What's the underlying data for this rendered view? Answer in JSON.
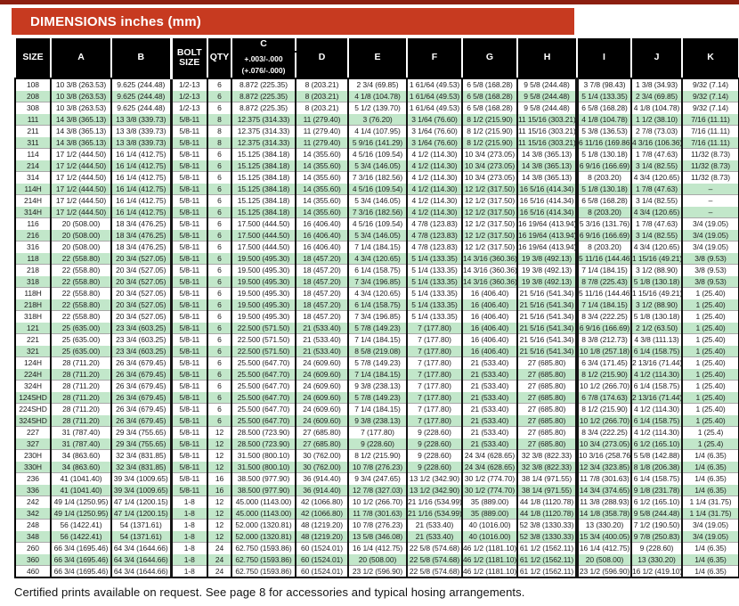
{
  "page": {
    "title": "DIMENSIONS inches (mm)",
    "footer_note": "Certified prints available on request. See page 8 for accessories and typical hosing arrangements."
  },
  "colors": {
    "title_red": "#c73a20",
    "top_strip": "#8c1f10",
    "header_bg": "#000000",
    "stripe_green": "#c2e7ca"
  },
  "table": {
    "headers": {
      "size": "SIZE",
      "a": "A",
      "b": "B",
      "bolt": "BOLT SIZE",
      "qty": "QTY",
      "c": "C",
      "c_tol_in": "+.003/-.000",
      "c_tol_mm": "(+.076/-.000)",
      "d": "D",
      "e": "E",
      "f": "F",
      "g": "G",
      "h": "H",
      "i": "I",
      "j": "J",
      "k": "K"
    },
    "rows": [
      [
        "108",
        "10 3/8 (263.53)",
        "9.625 (244.48)",
        "1/2-13",
        "6",
        "8.872 (225.35)",
        "8 (203.21)",
        "2 3/4 (69.85)",
        "1 61/64 (49.53)",
        "6 5/8 (168.28)",
        "9 5/8 (244.48)",
        "3 7/8 (98.43)",
        "1 3/8 (34.93)",
        "9/32 (7.14)"
      ],
      [
        "208",
        "10 3/8 (263.53)",
        "9.625 (244.48)",
        "1/2-13",
        "6",
        "8.872 (225.35)",
        "8 (203.21)",
        "4 1/8 (104.78)",
        "1 61/64 (49.53)",
        "6 5/8 (168.28)",
        "9 5/8 (244.48)",
        "5 1/4 (133.35)",
        "2 3/4 (69.85)",
        "9/32 (7.14)"
      ],
      [
        "308",
        "10 3/8 (263.53)",
        "9.625 (244.48)",
        "1/2-13",
        "6",
        "8.872 (225.35)",
        "8 (203.21)",
        "5 1/2 (139.70)",
        "1 61/64 (49.53)",
        "6 5/8 (168.28)",
        "9 5/8 (244.48)",
        "6 5/8 (168.28)",
        "4 1/8 (104.78)",
        "9/32 (7.14)"
      ],
      [
        "111",
        "14 3/8 (365.13)",
        "13 3/8 (339.73)",
        "5/8-11",
        "8",
        "12.375 (314.33)",
        "11 (279.40)",
        "3 (76.20)",
        "3 1/64 (76.60)",
        "8 1/2 (215.90)",
        "11 15/16 (303.21)",
        "4 1/8 (104.78)",
        "1 1/2 (38.10)",
        "7/16 (11.11)"
      ],
      [
        "211",
        "14 3/8 (365.13)",
        "13 3/8 (339.73)",
        "5/8-11",
        "8",
        "12.375 (314.33)",
        "11 (279.40)",
        "4 1/4 (107.95)",
        "3 1/64 (76.60)",
        "8 1/2 (215.90)",
        "11 15/16 (303.21)",
        "5 3/8 (136.53)",
        "2 7/8 (73.03)",
        "7/16 (11.11)"
      ],
      [
        "311",
        "14 3/8 (365.13)",
        "13 3/8 (339.73)",
        "5/8-11",
        "8",
        "12.375 (314.33)",
        "11 (279.40)",
        "5 9/16 (141.29)",
        "3 1/64 (76.60)",
        "8 1/2 (215.90)",
        "11 15/16 (303.21)",
        "6 11/16 (169.86)",
        "4 3/16 (106.36)",
        "7/16 (11.11)"
      ],
      [
        "114",
        "17 1/2 (444.50)",
        "16 1/4 (412.75)",
        "5/8-11",
        "6",
        "15.125 (384.18)",
        "14 (355.60)",
        "4 5/16 (109.54)",
        "4 1/2 (114.30)",
        "10 3/4 (273.05)",
        "14 3/8 (365.13)",
        "5 1/8 (130.18)",
        "1 7/8 (47.63)",
        "11/32 (8.73)"
      ],
      [
        "214",
        "17 1/2 (444.50)",
        "16 1/4 (412.75)",
        "5/8-11",
        "6",
        "15.125 (384.18)",
        "14 (355.60)",
        "5 3/4 (146.05)",
        "4 1/2 (114.30)",
        "10 3/4 (273.05)",
        "14 3/8 (365.13)",
        "6 9/16 (166.69)",
        "3 1/4 (82.55)",
        "11/32 (8.73)"
      ],
      [
        "314",
        "17 1/2 (444.50)",
        "16 1/4 (412.75)",
        "5/8-11",
        "6",
        "15.125 (384.18)",
        "14 (355.60)",
        "7 3/16 (182.56)",
        "4 1/2 (114.30)",
        "10 3/4 (273.05)",
        "14 3/8 (365.13)",
        "8 (203.20)",
        "4 3/4 (120.65)",
        "11/32 (8.73)"
      ],
      [
        "114H",
        "17 1/2 (444.50)",
        "16 1/4 (412.75)",
        "5/8-11",
        "6",
        "15.125 (384.18)",
        "14 (355.60)",
        "4 5/16 (109.54)",
        "4 1/2 (114.30)",
        "12 1/2 (317.50)",
        "16 5/16 (414.34)",
        "5 1/8 (130.18)",
        "1 7/8 (47.63)",
        "–"
      ],
      [
        "214H",
        "17 1/2 (444.50)",
        "16 1/4 (412.75)",
        "5/8-11",
        "6",
        "15.125 (384.18)",
        "14 (355.60)",
        "5 3/4 (146.05)",
        "4 1/2 (114.30)",
        "12 1/2 (317.50)",
        "16 5/16 (414.34)",
        "6 5/8 (168.28)",
        "3 1/4 (82.55)",
        "–"
      ],
      [
        "314H",
        "17 1/2 (444.50)",
        "16 1/4 (412.75)",
        "5/8-11",
        "6",
        "15.125 (384.18)",
        "14 (355.60)",
        "7 3/16 (182.56)",
        "4 1/2 (114.30)",
        "12 1/2 (317.50)",
        "16 5/16 (414.34)",
        "8 (203.20)",
        "4 3/4 (120.65)",
        "–"
      ],
      [
        "116",
        "20 (508.00)",
        "18 3/4 (476.25)",
        "5/8-11",
        "6",
        "17.500 (444.50)",
        "16 (406.40)",
        "4 5/16 (109.54)",
        "4 7/8 (123.83)",
        "12 1/2 (317.50)",
        "16 19/64 (413.94)",
        "5 3/16 (131.76)",
        "1 7/8 (47.63)",
        "3/4 (19.05)"
      ],
      [
        "216",
        "20 (508.00)",
        "18 3/4 (476.25)",
        "5/8-11",
        "6",
        "17.500 (444.50)",
        "16 (406.40)",
        "5 3/4 (146.05)",
        "4 7/8 (123.83)",
        "12 1/2 (317.50)",
        "16 19/64 (413.94)",
        "6 9/16 (166.69)",
        "3 1/4 (82.55)",
        "3/4 (19.05)"
      ],
      [
        "316",
        "20 (508.00)",
        "18 3/4 (476.25)",
        "5/8-11",
        "6",
        "17.500 (444.50)",
        "16 (406.40)",
        "7 1/4 (184.15)",
        "4 7/8 (123.83)",
        "12 1/2 (317.50)",
        "16 19/64 (413.94)",
        "8 (203.20)",
        "4 3/4 (120.65)",
        "3/4 (19.05)"
      ],
      [
        "118",
        "22 (558.80)",
        "20 3/4 (527.05)",
        "5/8-11",
        "6",
        "19.500 (495.30)",
        "18 (457.20)",
        "4 3/4 (120.65)",
        "5 1/4 (133.35)",
        "14 3/16 (360.36)",
        "19 3/8 (492.13)",
        "5 11/16 (144.46)",
        "1 15/16 (49.21)",
        "3/8 (9.53)"
      ],
      [
        "218",
        "22 (558.80)",
        "20 3/4 (527.05)",
        "5/8-11",
        "6",
        "19.500 (495.30)",
        "18 (457.20)",
        "6 1/4 (158.75)",
        "5 1/4 (133.35)",
        "14 3/16 (360.36)",
        "19 3/8 (492.13)",
        "7 1/4 (184.15)",
        "3 1/2 (88.90)",
        "3/8 (9.53)"
      ],
      [
        "318",
        "22 (558.80)",
        "20 3/4 (527.05)",
        "5/8-11",
        "6",
        "19.500 (495.30)",
        "18 (457.20)",
        "7 3/4 (196.85)",
        "5 1/4 (133.35)",
        "14 3/16 (360.36)",
        "19 3/8 (492.13)",
        "8 7/8 (225.43)",
        "5 1/8 (130.18)",
        "3/8 (9.53)"
      ],
      [
        "118H",
        "22 (558.80)",
        "20 3/4 (527.05)",
        "5/8-11",
        "6",
        "19.500 (495.30)",
        "18 (457.20)",
        "4 3/4 (120.65)",
        "5 1/4 (133.35)",
        "16 (406.40)",
        "21 5/16 (541.34)",
        "5 11/16 (144.46)",
        "1 15/16 (49.21)",
        "1 (25.40)"
      ],
      [
        "218H",
        "22 (558.80)",
        "20 3/4 (527.05)",
        "5/8-11",
        "6",
        "19.500 (495.30)",
        "18 (457.20)",
        "6 1/4 (158.75)",
        "5 1/4 (133.35)",
        "16 (406.40)",
        "21 5/16 (541.34)",
        "7 1/4 (184.15)",
        "3 1/2 (88.90)",
        "1 (25.40)"
      ],
      [
        "318H",
        "22 (558.80)",
        "20 3/4 (527.05)",
        "5/8-11",
        "6",
        "19.500 (495.30)",
        "18 (457.20)",
        "7 3/4 (196.85)",
        "5 1/4 (133.35)",
        "16 (406.40)",
        "21 5/16 (541.34)",
        "8 3/4 (222.25)",
        "5 1/8 (130.18)",
        "1 (25.40)"
      ],
      [
        "121",
        "25 (635.00)",
        "23 3/4 (603.25)",
        "5/8-11",
        "6",
        "22.500 (571.50)",
        "21 (533.40)",
        "5 7/8 (149.23)",
        "7 (177.80)",
        "16 (406.40)",
        "21 5/16 (541.34)",
        "6 9/16 (166.69)",
        "2 1/2 (63.50)",
        "1 (25.40)"
      ],
      [
        "221",
        "25 (635.00)",
        "23 3/4 (603.25)",
        "5/8-11",
        "6",
        "22.500 (571.50)",
        "21 (533.40)",
        "7 1/4 (184.15)",
        "7 (177.80)",
        "16 (406.40)",
        "21 5/16 (541.34)",
        "8 3/8 (212.73)",
        "4 3/8 (111.13)",
        "1 (25.40)"
      ],
      [
        "321",
        "25 (635.00)",
        "23 3/4 (603.25)",
        "5/8-11",
        "6",
        "22.500 (571.50)",
        "21 (533.40)",
        "8 5/8 (219.08)",
        "7 (177.80)",
        "16 (406.40)",
        "21 5/16 (541.34)",
        "10 1/8 (257.18)",
        "6 1/4 (158.75)",
        "1 (25.40)"
      ],
      [
        "124H",
        "28 (711.20)",
        "26 3/4 (679.45)",
        "5/8-11",
        "6",
        "25.500 (647.70)",
        "24 (609.60)",
        "5 7/8 (149.23)",
        "7 (177.80)",
        "21 (533.40)",
        "27 (685.80)",
        "6 3/4 (171.45)",
        "2 13/16 (71.44)",
        "1 (25.40)"
      ],
      [
        "224H",
        "28 (711.20)",
        "26 3/4 (679.45)",
        "5/8-11",
        "6",
        "25.500 (647.70)",
        "24 (609.60)",
        "7 1/4 (184.15)",
        "7 (177.80)",
        "21 (533.40)",
        "27 (685.80)",
        "8 1/2 (215.90)",
        "4 1/2 (114.30)",
        "1 (25.40)"
      ],
      [
        "324H",
        "28 (711.20)",
        "26 3/4 (679.45)",
        "5/8-11",
        "6",
        "25.500 (647.70)",
        "24 (609.60)",
        "9 3/8 (238.13)",
        "7 (177.80)",
        "21 (533.40)",
        "27 (685.80)",
        "10 1/2 (266.70)",
        "6 1/4 (158.75)",
        "1 (25.40)"
      ],
      [
        "124SHD",
        "28 (711.20)",
        "26 3/4 (679.45)",
        "5/8-11",
        "6",
        "25.500 (647.70)",
        "24 (609.60)",
        "5 7/8 (149.23)",
        "7 (177.80)",
        "21 (533.40)",
        "27 (685.80)",
        "6 7/8 (174.63)",
        "2 13/16 (71.44)",
        "1 (25.40)"
      ],
      [
        "224SHD",
        "28 (711.20)",
        "26 3/4 (679.45)",
        "5/8-11",
        "6",
        "25.500 (647.70)",
        "24 (609.60)",
        "7 1/4 (184.15)",
        "7 (177.80)",
        "21 (533.40)",
        "27 (685.80)",
        "8 1/2 (215.90)",
        "4 1/2 (114.30)",
        "1 (25.40)"
      ],
      [
        "324SHD",
        "28 (711.20)",
        "26 3/4 (679.45)",
        "5/8-11",
        "6",
        "25.500 (647.70)",
        "24 (609.60)",
        "9 3/8 (238.13)",
        "7 (177.80)",
        "21 (533.40)",
        "27 (685.80)",
        "10 1/2 (266.70)",
        "6 1/4 (158.75)",
        "1 (25.40)"
      ],
      [
        "227",
        "31 (787.40)",
        "29 3/4 (755.65)",
        "5/8-11",
        "12",
        "28.500 (723.90)",
        "27 (685.80)",
        "7 (177.80)",
        "9 (228.60)",
        "21 (533.40)",
        "27 (685.80)",
        "8 3/4 (222.25)",
        "4 1/2 (114.30)",
        "1 (25.4)"
      ],
      [
        "327",
        "31 (787.40)",
        "29 3/4 (755.65)",
        "5/8-11",
        "12",
        "28.500 (723.90)",
        "27 (685.80)",
        "9 (228.60)",
        "9 (228.60)",
        "21 (533.40)",
        "27 (685.80)",
        "10 3/4 (273.05)",
        "6 1/2 (165.10)",
        "1 (25.4)"
      ],
      [
        "230H",
        "34 (863.60)",
        "32 3/4 (831.85)",
        "5/8-11",
        "12",
        "31.500 (800.10)",
        "30 (762.00)",
        "8 1/2 (215.90)",
        "9 (228.60)",
        "24 3/4 (628.65)",
        "32 3/8 (822.33)",
        "10 3/16 (258.76)",
        "5 5/8 (142.88)",
        "1/4 (6.35)"
      ],
      [
        "330H",
        "34 (863.60)",
        "32 3/4 (831.85)",
        "5/8-11",
        "12",
        "31.500 (800.10)",
        "30 (762.00)",
        "10 7/8 (276.23)",
        "9 (228.60)",
        "24 3/4 (628.65)",
        "32 3/8 (822.33)",
        "12 3/4 (323.85)",
        "8 1/8 (206.38)",
        "1/4 (6.35)"
      ],
      [
        "236",
        "41 (1041.40)",
        "39 3/4 (1009.65)",
        "5/8-11",
        "16",
        "38.500 (977.90)",
        "36 (914.40)",
        "9 3/4 (247.65)",
        "13 1/2 (342.90)",
        "30 1/2 (774.70)",
        "38 1/4 (971.55)",
        "11 7/8 (301.63)",
        "6 1/4 (158.75)",
        "1/4 (6.35)"
      ],
      [
        "336",
        "41 (1041.40)",
        "39 3/4 (1009.65)",
        "5/8-11",
        "16",
        "38.500 (977.90)",
        "36 (914.40)",
        "12 7/8 (327.03)",
        "13 1/2 (342.90)",
        "30 1/2 (774.70)",
        "38 1/4 (971.55)",
        "14 3/4 (374.65)",
        "9 1/8 (231.78)",
        "1/4 (6.35)"
      ],
      [
        "242",
        "49 1/4 (1250.95)",
        "47 1/4 (1200.15)",
        "1-8",
        "12",
        "45.000 (1143.00)",
        "42 (1066.80)",
        "10 1/2 (266.70)",
        "21 1/16 (534.99)",
        "35 (889.00)",
        "44 1/8 (1120.78)",
        "11 3/8 (288.93)",
        "6 1/2 (165.10)",
        "1 1/4 (31.75)"
      ],
      [
        "342",
        "49 1/4 (1250.95)",
        "47 1/4 (1200.15)",
        "1-8",
        "12",
        "45.000 (1143.00)",
        "42 (1066.80)",
        "11 7/8 (301.63)",
        "21 1/16 (534.99)",
        "35 (889.00)",
        "44 1/8 (1120.78)",
        "14 1/8 (358.78)",
        "9 5/8 (244.48)",
        "1 1/4 (31.75)"
      ],
      [
        "248",
        "56 (1422.41)",
        "54 (1371.61)",
        "1-8",
        "12",
        "52.000 (1320.81)",
        "48 (1219.20)",
        "10 7/8 (276.23)",
        "21 (533.40)",
        "40 (1016.00)",
        "52 3/8 (1330.33)",
        "13 (330.20)",
        "7 1/2 (190.50)",
        "3/4 (19.05)"
      ],
      [
        "348",
        "56 (1422.41)",
        "54 (1371.61)",
        "1-8",
        "12",
        "52.000 (1320.81)",
        "48 (1219.20)",
        "13 5/8 (346.08)",
        "21 (533.40)",
        "40 (1016.00)",
        "52 3/8 (1330.33)",
        "15 3/4 (400.05)",
        "9 7/8 (250.83)",
        "3/4 (19.05)"
      ],
      [
        "260",
        "66 3/4 (1695.46)",
        "64 3/4 (1644.66)",
        "1-8",
        "24",
        "62.750 (1593.86)",
        "60 (1524.01)",
        "16 1/4 (412.75)",
        "22 5/8 (574.68)",
        "46 1/2 (1181.10)",
        "61 1/2 (1562.11)",
        "16 1/4 (412.75)",
        "9 (228.60)",
        "1/4 (6.35)"
      ],
      [
        "360",
        "66 3/4 (1695.46)",
        "64 3/4 (1644.66)",
        "1-8",
        "24",
        "62.750 (1593.86)",
        "60 (1524.01)",
        "20 (508.00)",
        "22 5/8 (574.68)",
        "46 1/2 (1181.10)",
        "61 1/2 (1562.11)",
        "20 (508.00)",
        "13 (330.20)",
        "1/4 (6.35)"
      ],
      [
        "460",
        "66 3/4 (1695.46)",
        "64 3/4 (1644.66)",
        "1-8",
        "24",
        "62.750 (1593.86)",
        "60 (1524.01)",
        "23 1/2 (596.90)",
        "22 5/8 (574.68)",
        "46 1/2 (1181.10)",
        "61 1/2 (1562.11)",
        "23 1/2 (596.90)",
        "16 1/2 (419.10)",
        "1/4 (6.35)"
      ]
    ]
  }
}
